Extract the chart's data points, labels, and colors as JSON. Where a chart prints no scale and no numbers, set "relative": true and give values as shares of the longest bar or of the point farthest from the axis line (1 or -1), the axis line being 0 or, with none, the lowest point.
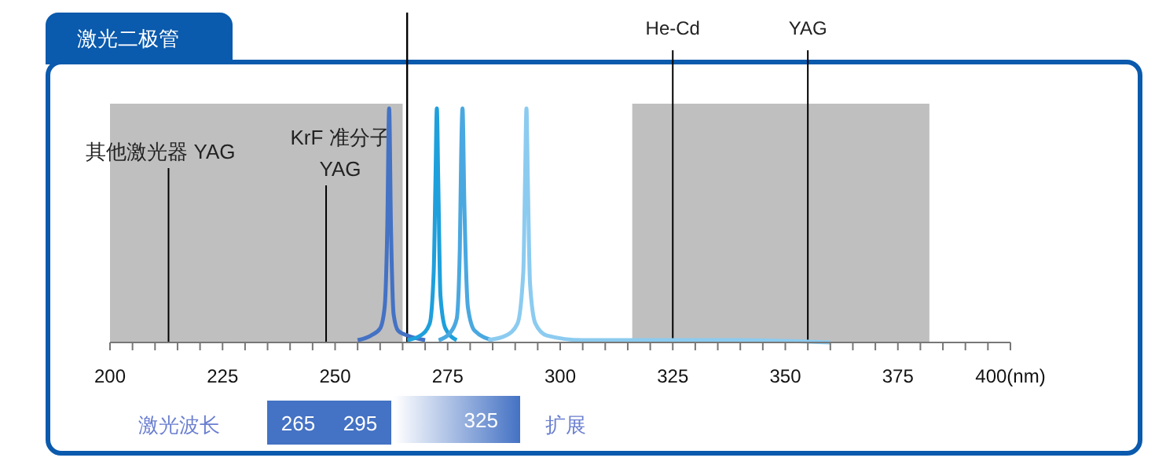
{
  "chart_data": {
    "type": "line",
    "title": "激光二极管",
    "relative": true,
    "xlim": [
      200,
      400
    ],
    "xticks": [
      200,
      {
        "value": 205,
        "label": null
      },
      {
        "value": 210,
        "label": null
      },
      {
        "value": 215,
        "label": null
      },
      {
        "value": 220,
        "label": null
      },
      225,
      {
        "value": 230,
        "label": null
      },
      {
        "value": 235,
        "label": null
      },
      {
        "value": 240,
        "label": null
      },
      {
        "value": 245,
        "label": null
      },
      250,
      {
        "value": 255,
        "label": null
      },
      {
        "value": 260,
        "label": null
      },
      {
        "value": 265,
        "label": null
      },
      {
        "value": 270,
        "label": null
      },
      275,
      {
        "value": 280,
        "label": null
      },
      {
        "value": 285,
        "label": null
      },
      {
        "value": 290,
        "label": null
      },
      {
        "value": 295,
        "label": null
      },
      300,
      {
        "value": 305,
        "label": null
      },
      {
        "value": 310,
        "label": null
      },
      {
        "value": 315,
        "label": null
      },
      {
        "value": 320,
        "label": null
      },
      325,
      {
        "value": 330,
        "label": null
      },
      {
        "value": 335,
        "label": null
      },
      {
        "value": 340,
        "label": null
      },
      {
        "value": 345,
        "label": null
      },
      350,
      {
        "value": 355,
        "label": null
      },
      {
        "value": 360,
        "label": null
      },
      {
        "value": 365,
        "label": null
      },
      {
        "value": 370,
        "label": null
      },
      375,
      {
        "value": 380,
        "label": null
      },
      {
        "value": 385,
        "label": null
      },
      {
        "value": 390,
        "label": null
      },
      {
        "value": 395,
        "label": null
      },
      {
        "value": 400,
        "label": "400(nm)"
      }
    ],
    "series": [
      {
        "color": "#4472c4",
        "x": [
          255,
          258,
          260,
          261,
          261.6,
          262,
          262.4,
          263,
          264,
          266,
          270
        ],
        "values": [
          0.01,
          0.03,
          0.06,
          0.15,
          0.5,
          1,
          0.5,
          0.12,
          0.05,
          0.03,
          0.01
        ]
      },
      {
        "color": "#1ea0dc",
        "x": [
          266,
          269,
          271,
          271.9,
          272.3,
          272.6,
          272.9,
          273.4,
          274.5,
          277
        ],
        "values": [
          0.01,
          0.03,
          0.08,
          0.3,
          0.7,
          1,
          0.7,
          0.2,
          0.06,
          0.01
        ]
      },
      {
        "color": "#4aa8e0",
        "x": [
          273,
          275.5,
          277,
          277.7,
          278,
          278.3,
          278.7,
          279.5,
          281,
          285
        ],
        "values": [
          0.01,
          0.04,
          0.1,
          0.4,
          0.8,
          1,
          0.6,
          0.15,
          0.05,
          0.01
        ]
      },
      {
        "color": "#8ccbf0",
        "x": [
          284,
          288,
          290.5,
          291.8,
          292.2,
          292.5,
          292.8,
          293.3,
          294.5,
          297,
          305,
          320,
          340,
          360
        ],
        "values": [
          0.01,
          0.03,
          0.08,
          0.3,
          0.7,
          1,
          0.7,
          0.25,
          0.08,
          0.03,
          0.01,
          0.01,
          0.01,
          0
        ]
      }
    ],
    "bands": [
      {
        "axis": "x",
        "from": 200,
        "to": 265,
        "color": "#bfbfbf"
      },
      {
        "axis": "x",
        "from": 316,
        "to": 382,
        "color": "#bfbfbf"
      }
    ],
    "ref_lines": [
      {
        "axis": "x",
        "value": 213,
        "label": "其他激光器  YAG",
        "color": "#000000"
      },
      {
        "axis": "x",
        "value": 248,
        "label": "KrF  准分子\nYAG",
        "color": "#000000"
      },
      {
        "axis": "x",
        "value": 266,
        "color": "#000000"
      },
      {
        "axis": "x",
        "value": 325,
        "label": "He-Cd",
        "color": "#000000"
      },
      {
        "axis": "x",
        "value": 355,
        "label": "YAG",
        "color": "#000000"
      }
    ],
    "annotations": [
      "激光波长",
      "265",
      "295",
      "325",
      "扩展"
    ],
    "marker": "none",
    "line_style": "solid"
  }
}
